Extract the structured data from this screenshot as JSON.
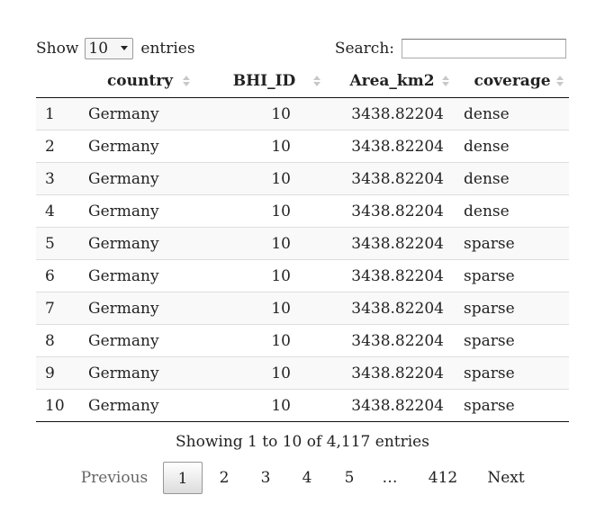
{
  "controls": {
    "show_label": "Show",
    "entries_label": "entries",
    "page_length": "10",
    "search_label": "Search:",
    "search_value": ""
  },
  "table": {
    "columns": [
      "",
      "country",
      "BHI_ID",
      "Area_km2",
      "coverage"
    ],
    "rows": [
      [
        "1",
        "Germany",
        "10",
        "3438.82204",
        "dense"
      ],
      [
        "2",
        "Germany",
        "10",
        "3438.82204",
        "dense"
      ],
      [
        "3",
        "Germany",
        "10",
        "3438.82204",
        "dense"
      ],
      [
        "4",
        "Germany",
        "10",
        "3438.82204",
        "dense"
      ],
      [
        "5",
        "Germany",
        "10",
        "3438.82204",
        "sparse"
      ],
      [
        "6",
        "Germany",
        "10",
        "3438.82204",
        "sparse"
      ],
      [
        "7",
        "Germany",
        "10",
        "3438.82204",
        "sparse"
      ],
      [
        "8",
        "Germany",
        "10",
        "3438.82204",
        "sparse"
      ],
      [
        "9",
        "Germany",
        "10",
        "3438.82204",
        "sparse"
      ],
      [
        "10",
        "Germany",
        "10",
        "3438.82204",
        "sparse"
      ]
    ]
  },
  "info": "Showing 1 to 10 of 4,117 entries",
  "pagination": {
    "previous": "Previous",
    "next": "Next",
    "pages": [
      "1",
      "2",
      "3",
      "4",
      "5",
      "…",
      "412"
    ],
    "current": "1"
  },
  "icons": {
    "sort": "sort-both-icon",
    "dropdown": "chevron-down-icon"
  }
}
